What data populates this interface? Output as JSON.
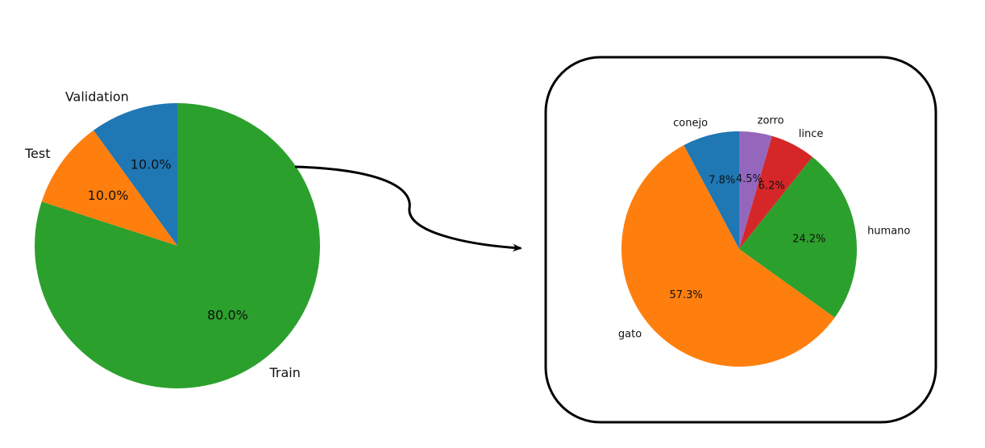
{
  "chart_data": [
    {
      "type": "pie",
      "title": "",
      "start_angle_deg": 90,
      "direction": "counterclockwise",
      "slices": [
        {
          "label": "Validation",
          "value": 10.0,
          "pct_label": "10.0%",
          "color": "#1f77b4"
        },
        {
          "label": "Test",
          "value": 10.0,
          "pct_label": "10.0%",
          "color": "#ff7f0e"
        },
        {
          "label": "Train",
          "value": 80.0,
          "pct_label": "80.0%",
          "color": "#2ca02c"
        }
      ]
    },
    {
      "type": "pie",
      "title": "",
      "start_angle_deg": 90,
      "direction": "counterclockwise",
      "slices": [
        {
          "label": "conejo",
          "value": 7.8,
          "pct_label": "7.8%",
          "color": "#1f77b4"
        },
        {
          "label": "gato",
          "value": 57.3,
          "pct_label": "57.3%",
          "color": "#ff7f0e"
        },
        {
          "label": "humano",
          "value": 24.2,
          "pct_label": "24.2%",
          "color": "#2ca02c"
        },
        {
          "label": "lince",
          "value": 6.2,
          "pct_label": "6.2%",
          "color": "#d62728"
        },
        {
          "label": "zorro",
          "value": 4.5,
          "pct_label": "4.5%",
          "color": "#9467bd"
        }
      ]
    }
  ],
  "annotations": {
    "connector": "arrow from Train slice to detail box",
    "detail_box": "rounded frame around the second pie chart"
  }
}
